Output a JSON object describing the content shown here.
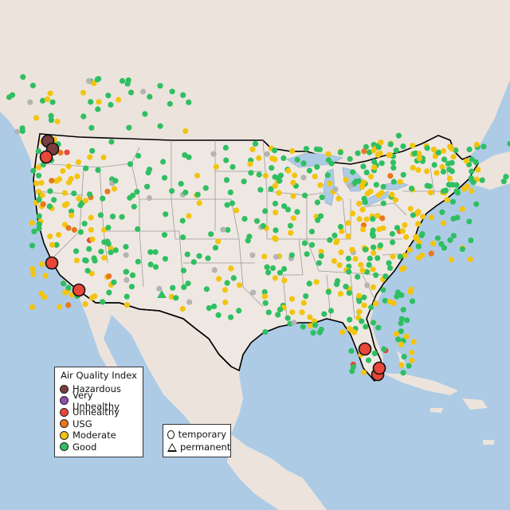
{
  "legend": {
    "title": "Air Quality Index",
    "items": [
      {
        "label": "Hazardous",
        "color": "#7a3e3e"
      },
      {
        "label": "Very Unhealthy",
        "color": "#8e4fb0"
      },
      {
        "label": "Unhealthy",
        "color": "#e8473a"
      },
      {
        "label": "USG",
        "color": "#e8781e"
      },
      {
        "label": "Moderate",
        "color": "#f2c40f"
      },
      {
        "label": "Good",
        "color": "#2fbf62"
      }
    ]
  },
  "shape_legend": {
    "temporary": "temporary",
    "permanent": "permanent"
  },
  "colors": {
    "ocean": "#aecbe6",
    "land_us": "#efe8e2",
    "land_other": "#ece4dc",
    "lakes": "#aecbe6",
    "state_lines": "#9a9a9a",
    "borders": "#000000",
    "no_data": "#b4b4b4"
  },
  "large_markers": [
    {
      "status": "Hazardous"
    },
    {
      "status": "Hazardous"
    },
    {
      "status": "Unhealthy"
    },
    {
      "status": "Unhealthy"
    },
    {
      "status": "Unhealthy"
    },
    {
      "status": "Unhealthy"
    },
    {
      "status": "Unhealthy"
    },
    {
      "status": "Unhealthy"
    }
  ]
}
